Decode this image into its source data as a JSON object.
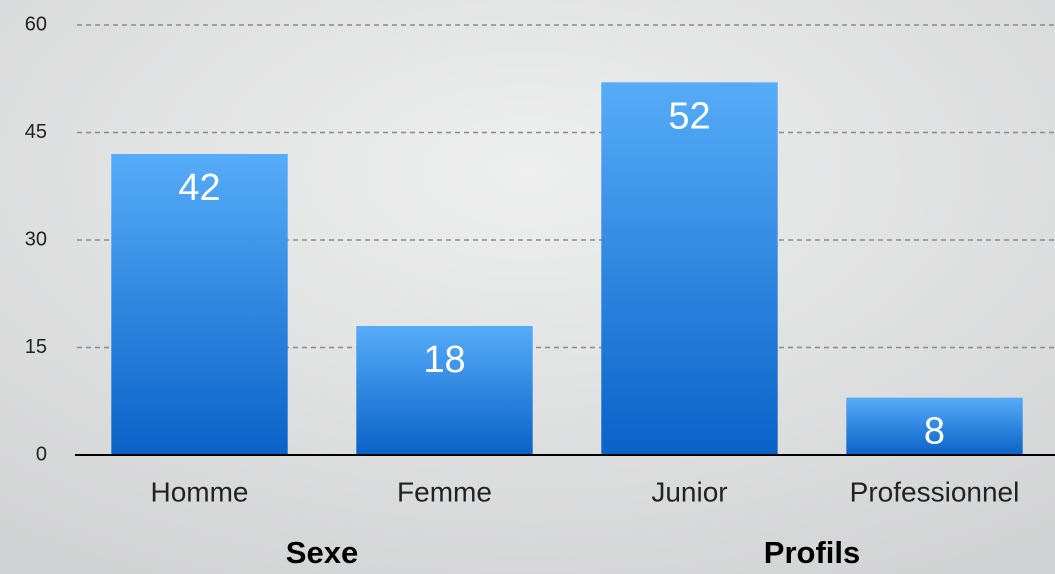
{
  "chart_data": {
    "type": "bar",
    "categories": [
      "Homme",
      "Femme",
      "Junior",
      "Professionnel"
    ],
    "values": [
      42,
      18,
      52,
      8
    ],
    "groups": [
      "Sexe",
      "Profils"
    ],
    "ylim": [
      0,
      60
    ],
    "yticks": [
      0,
      15,
      30,
      45,
      60
    ],
    "grid": true
  }
}
